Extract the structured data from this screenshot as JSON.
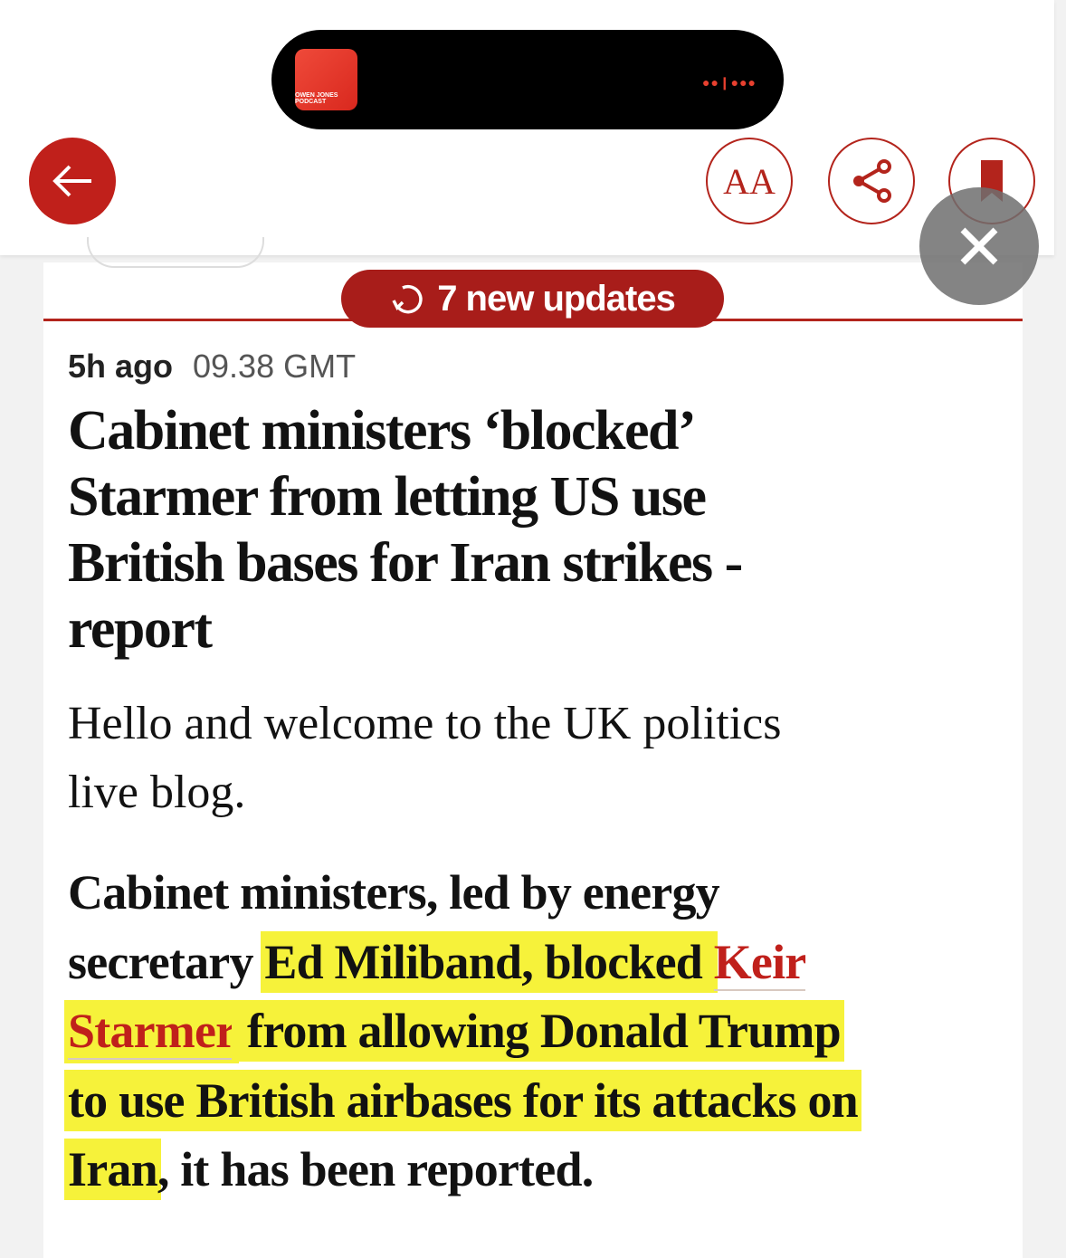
{
  "dynamic_island": {
    "podcast_art_text": "OWEN JONES PODCAST"
  },
  "toolbar": {
    "back": "back",
    "text_size_label": "AA",
    "share": "share",
    "bookmark": "bookmark"
  },
  "overlay": {
    "close": "close"
  },
  "updates_button": {
    "label": "7 new updates"
  },
  "post": {
    "relative_time": "5h ago",
    "time": "09.38 GMT",
    "headline_lines": [
      "Cabinet ministers ‘blocked’",
      "Starmer from letting US use",
      "British bases for Iran strikes -",
      "report"
    ],
    "intro_lines": [
      "Hello and welcome to the UK politics",
      "live blog."
    ],
    "para": {
      "l1": "Cabinet ministers, led by energy",
      "l2a": "secretary ",
      "l2b": "Ed Miliband, blocked ",
      "l2c": "Keir",
      "l3a": "Starmer",
      "l3b": " from allowing Donald Trump",
      "l4": "to use British airbases for its attacks on",
      "l5a": "Iran",
      "l5b": ", it has been reported."
    }
  },
  "colors": {
    "accent": "#c0201b",
    "highlight": "#f6f23a"
  }
}
